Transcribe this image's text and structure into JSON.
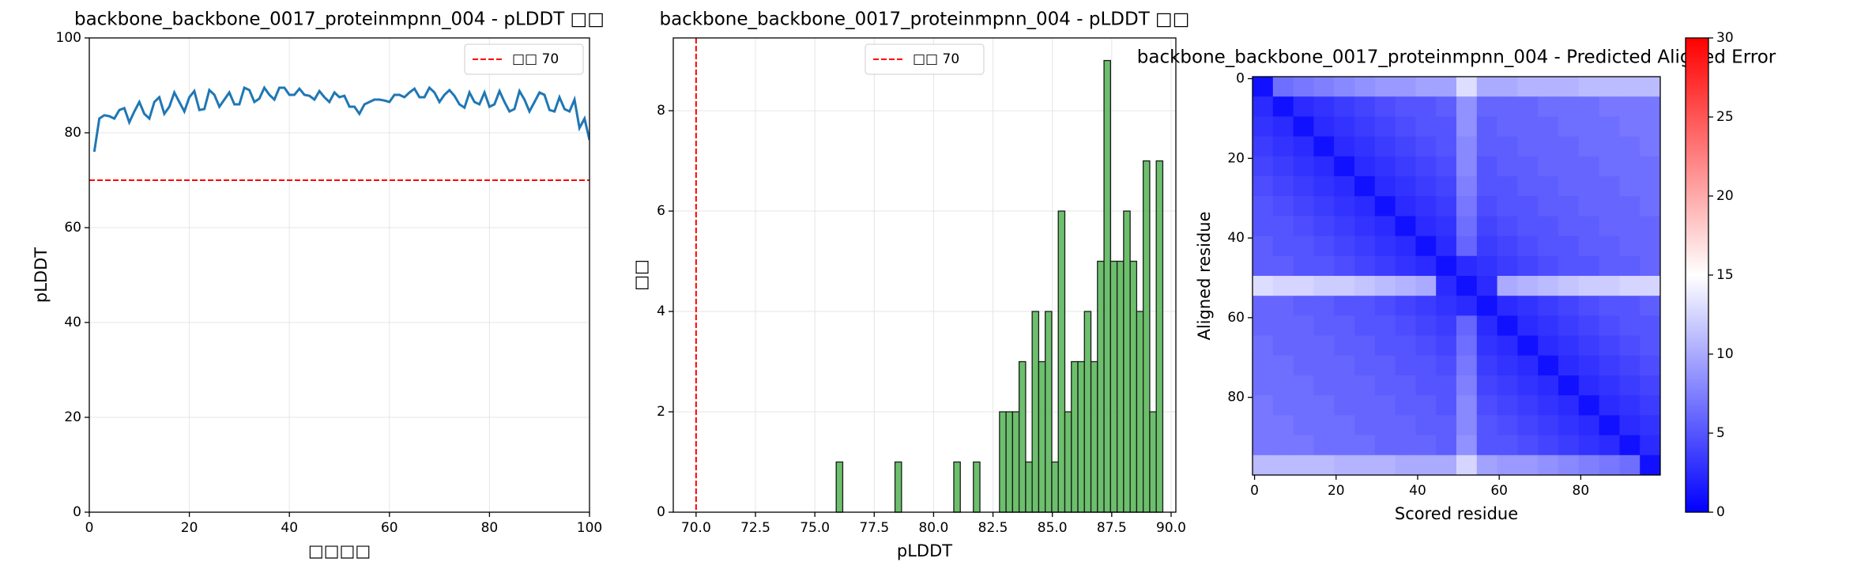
{
  "chart_data": [
    {
      "type": "line",
      "title": "backbone_backbone_0017_proteinmpnn_004 - pLDDT □□",
      "xlabel": "□□□□",
      "ylabel": "pLDDT",
      "x": [
        1,
        2,
        3,
        4,
        5,
        6,
        7,
        8,
        9,
        10,
        11,
        12,
        13,
        14,
        15,
        16,
        17,
        18,
        19,
        20,
        21,
        22,
        23,
        24,
        25,
        26,
        27,
        28,
        29,
        30,
        31,
        32,
        33,
        34,
        35,
        36,
        37,
        38,
        39,
        40,
        41,
        42,
        43,
        44,
        45,
        46,
        47,
        48,
        49,
        50,
        51,
        52,
        53,
        54,
        55,
        56,
        57,
        58,
        59,
        60,
        61,
        62,
        63,
        64,
        65,
        66,
        67,
        68,
        69,
        70,
        71,
        72,
        73,
        74,
        75,
        76,
        77,
        78,
        79,
        80,
        81,
        82,
        83,
        84,
        85,
        86,
        87,
        88,
        89,
        90,
        91,
        92,
        93,
        94,
        95,
        96,
        97,
        98,
        99,
        100
      ],
      "values": [
        76,
        83,
        83.7,
        83.5,
        83,
        84.8,
        85.2,
        82.2,
        84.5,
        86.5,
        84,
        83,
        86.5,
        87.5,
        84,
        85.5,
        88.5,
        86.5,
        84.5,
        87.5,
        88.8,
        84.8,
        85,
        89,
        88,
        85.5,
        87,
        88.5,
        86,
        86,
        89.5,
        89,
        86.5,
        87.2,
        89.5,
        88,
        87,
        89.5,
        89.5,
        88,
        88,
        89.3,
        88,
        87.8,
        87,
        88.8,
        87.5,
        86.5,
        88.5,
        87.5,
        87.8,
        85.5,
        85.5,
        84,
        86,
        86.5,
        87,
        87,
        86.8,
        86.5,
        88,
        88,
        87.5,
        88.5,
        89.3,
        87.5,
        87.5,
        89.5,
        88.5,
        86.5,
        88,
        89,
        87.8,
        86,
        85.3,
        88.5,
        86.5,
        86,
        88.5,
        85.5,
        86,
        88.8,
        86.5,
        84.5,
        85,
        88.8,
        87,
        84.5,
        86.5,
        88.5,
        88,
        84.8,
        84.5,
        87.5,
        85,
        84.5,
        87,
        81,
        83,
        78.5
      ],
      "color": "#1f77b4",
      "xlim": [
        0,
        100
      ],
      "ylim": [
        0,
        100
      ],
      "xticks": [
        0,
        20,
        40,
        60,
        80,
        100
      ],
      "yticks": [
        0,
        20,
        40,
        60,
        80,
        100
      ],
      "grid": true,
      "reference_line": {
        "value": 70,
        "label": "□□ 70",
        "color": "#ff0000"
      },
      "legend": "upper right"
    },
    {
      "type": "histogram",
      "title": "backbone_backbone_0017_proteinmpnn_004 - pLDDT □□",
      "xlabel": "pLDDT",
      "ylabel": "□□",
      "bins": [
        75.9,
        76.175,
        76.45,
        76.725,
        77.0,
        77.275,
        77.55,
        77.825,
        78.1,
        78.375,
        78.65,
        78.925,
        79.2,
        79.475,
        79.75,
        80.025,
        80.3,
        80.575,
        80.85,
        81.125,
        81.4,
        81.675,
        81.95,
        82.225,
        82.5,
        82.775,
        83.05,
        83.325,
        83.6,
        83.875,
        84.15,
        84.425,
        84.7,
        84.975,
        85.25,
        85.525,
        85.8,
        86.075,
        86.35,
        86.625,
        86.9,
        87.175,
        87.45,
        87.725,
        88.0,
        88.275,
        88.55,
        88.825,
        89.1,
        89.375,
        89.65
      ],
      "values": [
        1,
        0,
        0,
        0,
        0,
        0,
        0,
        0,
        0,
        1,
        0,
        0,
        0,
        0,
        0,
        0,
        0,
        0,
        1,
        0,
        0,
        1,
        0,
        0,
        0,
        2,
        2,
        2,
        3,
        1,
        4,
        3,
        4,
        1,
        6,
        2,
        3,
        3,
        4,
        3,
        5,
        9,
        5,
        5,
        6,
        5,
        4,
        7,
        2,
        7
      ],
      "color": "#5cb85c",
      "xlim": [
        69.04,
        90.2
      ],
      "ylim": [
        0,
        9.45
      ],
      "xticks": [
        {
          "value": 70,
          "label": "70.0"
        },
        72.5,
        {
          "value": 75,
          "label": "75.0"
        },
        77.5,
        {
          "value": 80,
          "label": "80.0"
        },
        82.5,
        {
          "value": 85,
          "label": "85.0"
        },
        87.5,
        {
          "value": 90,
          "label": "90.0"
        }
      ],
      "yticks": [
        0,
        2,
        4,
        6,
        8
      ],
      "grid": true,
      "reference_line": {
        "value": 70,
        "label": "□□ 70",
        "color": "#ff0000"
      },
      "legend": "upper center"
    },
    {
      "type": "heatmap",
      "title": "backbone_backbone_0017_proteinmpnn_004 - Predicted Aligned Error",
      "xlabel": "Scored residue",
      "ylabel": "Aligned residue",
      "x": [
        0,
        5,
        10,
        15,
        20,
        25,
        30,
        35,
        40,
        45,
        50,
        55,
        60,
        65,
        70,
        75,
        80,
        85,
        90,
        95
      ],
      "y": [
        0,
        5,
        10,
        15,
        20,
        25,
        30,
        35,
        40,
        45,
        50,
        55,
        60,
        65,
        70,
        75,
        80,
        85,
        90,
        95
      ],
      "z": [
        [
          1,
          6.5,
          7,
          7.5,
          8,
          8.5,
          9,
          9,
          9.5,
          9.5,
          13,
          10,
          10,
          10.5,
          10.5,
          10.5,
          11,
          11,
          11,
          11
        ],
        [
          2.5,
          1,
          2.5,
          3,
          3.5,
          4,
          4.5,
          5,
          5,
          5.5,
          8.5,
          6,
          6,
          6,
          6.5,
          6.5,
          6.5,
          7,
          7,
          7
        ],
        [
          3,
          2.5,
          1,
          2.5,
          3,
          3.5,
          4,
          4.5,
          5,
          5,
          8.5,
          5.5,
          6,
          6,
          6,
          6.5,
          6.5,
          6.5,
          7,
          7
        ],
        [
          3.5,
          3,
          2.5,
          1,
          2.5,
          3,
          3.5,
          4,
          4.5,
          5,
          8,
          5.5,
          5.5,
          6,
          6,
          6,
          6.5,
          6.5,
          6.5,
          7
        ],
        [
          4,
          3.5,
          3,
          2.5,
          1,
          2.5,
          3,
          3.5,
          4,
          4.5,
          8,
          5,
          5.5,
          5.5,
          6,
          6,
          6,
          6.5,
          6.5,
          6.5
        ],
        [
          4.5,
          4,
          3.5,
          3,
          2.5,
          1,
          2.5,
          3,
          3.5,
          4,
          7.5,
          5,
          5,
          5.5,
          5.5,
          6,
          6,
          6,
          6.5,
          6.5
        ],
        [
          5,
          4.5,
          4,
          3.5,
          3,
          2.5,
          1,
          2.5,
          3,
          3.5,
          7,
          4.5,
          5,
          5,
          5.5,
          5.5,
          6,
          6,
          6,
          6.5
        ],
        [
          5,
          5,
          4.5,
          4,
          3.5,
          3,
          2.5,
          1,
          2.5,
          3,
          6.5,
          4,
          4.5,
          5,
          5,
          5.5,
          5.5,
          6,
          6,
          6
        ],
        [
          5.5,
          5,
          5,
          4.5,
          4,
          3.5,
          3,
          2.5,
          1,
          2.5,
          6,
          3.5,
          4,
          4.5,
          5,
          5,
          5.5,
          5.5,
          6,
          6
        ],
        [
          5.5,
          5.5,
          5,
          5,
          4.5,
          4,
          3.5,
          3,
          2.5,
          1,
          2.5,
          3,
          3.5,
          4,
          4.5,
          5,
          5,
          5.5,
          5.5,
          6
        ],
        [
          13,
          12.5,
          12.5,
          12,
          12,
          11.5,
          11,
          10.5,
          10,
          2.5,
          1,
          2.5,
          10,
          10.5,
          11,
          11.5,
          12,
          12,
          12.5,
          12.5
        ],
        [
          6,
          6,
          5.5,
          5.5,
          5,
          5,
          4.5,
          4,
          3.5,
          3,
          2.5,
          1,
          2.5,
          3,
          3.5,
          4,
          4.5,
          5,
          5,
          5.5
        ],
        [
          6,
          6,
          6,
          5.5,
          5.5,
          5,
          5,
          4.5,
          4,
          3.5,
          6,
          2.5,
          1,
          2.5,
          3,
          3.5,
          4,
          4.5,
          5,
          5
        ],
        [
          6.5,
          6,
          6,
          6,
          5.5,
          5.5,
          5,
          5,
          4.5,
          4,
          6.5,
          3,
          2.5,
          1,
          2.5,
          3,
          3.5,
          4,
          4.5,
          5
        ],
        [
          6.5,
          6.5,
          6,
          6,
          6,
          5.5,
          5.5,
          5,
          5,
          4.5,
          7,
          3.5,
          3,
          2.5,
          1,
          2.5,
          3,
          3.5,
          4,
          4.5
        ],
        [
          6.5,
          6.5,
          6.5,
          6,
          6,
          6,
          5.5,
          5.5,
          5,
          5,
          7.5,
          4,
          3.5,
          3,
          2.5,
          1,
          2.5,
          3,
          3.5,
          4
        ],
        [
          7,
          6.5,
          6.5,
          6.5,
          6,
          6,
          6,
          5.5,
          5.5,
          5,
          8,
          4.5,
          4,
          3.5,
          3,
          2.5,
          1,
          2.5,
          3,
          3.5
        ],
        [
          7,
          7,
          6.5,
          6.5,
          6.5,
          6,
          6,
          6,
          5.5,
          5.5,
          8,
          5,
          4.5,
          4,
          3.5,
          3,
          2.5,
          1,
          2.5,
          3
        ],
        [
          7,
          7,
          7,
          6.5,
          6.5,
          6.5,
          6,
          6,
          6,
          5.5,
          8.5,
          5,
          5,
          4.5,
          4,
          3.5,
          3,
          2.5,
          1,
          2.5
        ],
        [
          11,
          11,
          11,
          11,
          10.5,
          10.5,
          10.5,
          10,
          10,
          10,
          12.5,
          9.5,
          9,
          9,
          8.5,
          8,
          7.5,
          7,
          6.5,
          1
        ]
      ],
      "xlim": [
        -0.5,
        99.5
      ],
      "ylim": [
        99.5,
        -0.5
      ],
      "xticks": [
        0,
        20,
        40,
        60,
        80
      ],
      "yticks": [
        0,
        20,
        40,
        60,
        80
      ],
      "colormap": "bwr",
      "clim": [
        0,
        30
      ],
      "cticks": [
        0,
        5,
        10,
        15,
        20,
        25,
        30
      ]
    }
  ]
}
